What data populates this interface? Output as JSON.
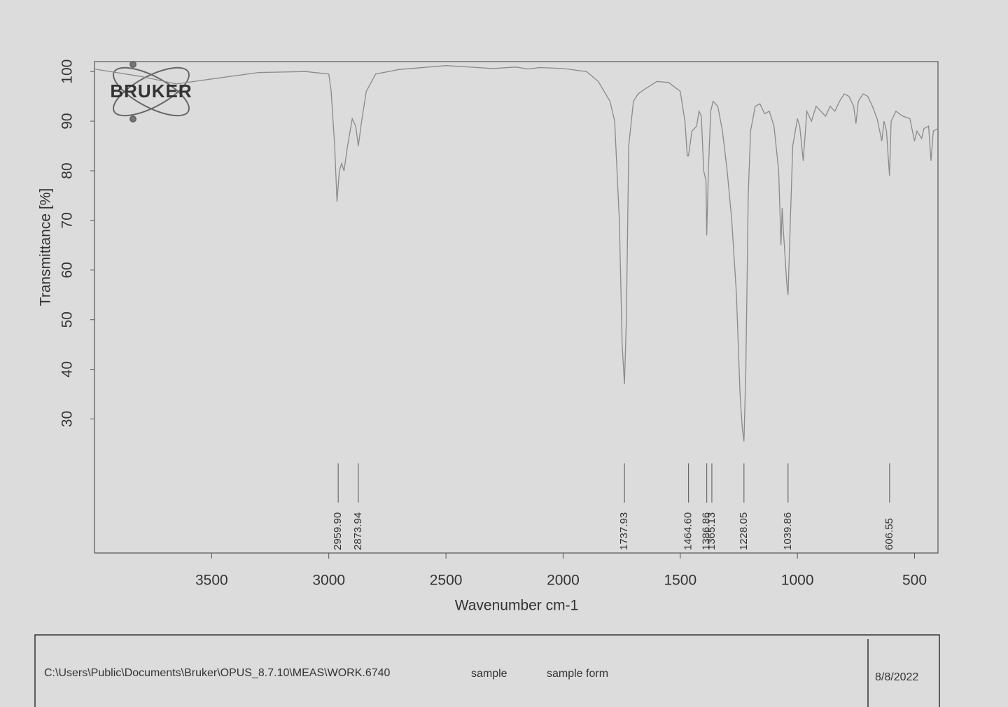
{
  "chart_data": {
    "type": "line",
    "logo": "BRUKER",
    "xlabel": "Wavenumber cm-1",
    "ylabel": "Transmittance [%]",
    "xlim": [
      4000,
      400
    ],
    "ylim": [
      3,
      102
    ],
    "xticks": [
      3500,
      3000,
      2500,
      2000,
      1500,
      1000,
      500
    ],
    "yticks": [
      30,
      40,
      50,
      60,
      70,
      80,
      90,
      100
    ],
    "color": "#8a8a8a",
    "x": [
      4000,
      3800,
      3650,
      3500,
      3300,
      3100,
      3000,
      2990,
      2975,
      2965,
      2955,
      2945,
      2935,
      2920,
      2900,
      2885,
      2874,
      2860,
      2840,
      2800,
      2700,
      2500,
      2300,
      2200,
      2150,
      2100,
      2000,
      1900,
      1850,
      1800,
      1780,
      1760,
      1748,
      1738,
      1730,
      1720,
      1700,
      1680,
      1650,
      1600,
      1550,
      1500,
      1480,
      1470,
      1465,
      1450,
      1430,
      1420,
      1410,
      1400,
      1390,
      1387,
      1380,
      1370,
      1360,
      1340,
      1320,
      1300,
      1280,
      1260,
      1245,
      1235,
      1228,
      1220,
      1210,
      1200,
      1180,
      1160,
      1140,
      1120,
      1100,
      1080,
      1070,
      1065,
      1060,
      1045,
      1040,
      1030,
      1020,
      1000,
      990,
      975,
      960,
      940,
      920,
      900,
      880,
      860,
      840,
      820,
      800,
      780,
      760,
      750,
      740,
      720,
      700,
      680,
      660,
      640,
      630,
      620,
      607,
      600,
      580,
      550,
      520,
      500,
      490,
      470,
      460,
      440,
      430,
      420,
      400
    ],
    "values": [
      100.5,
      99,
      97.5,
      98.5,
      99.8,
      100,
      99.5,
      96,
      85,
      73.8,
      80,
      81.5,
      80,
      85,
      90.5,
      89,
      85,
      90,
      96,
      99.5,
      100.4,
      101.2,
      100.6,
      100.9,
      100.5,
      100.8,
      100.6,
      100,
      98,
      94,
      90,
      70,
      45,
      37,
      50,
      85,
      94,
      95.5,
      96.5,
      98,
      97.8,
      96,
      90,
      83,
      83,
      88,
      89,
      92,
      91,
      80,
      78,
      67,
      80,
      92,
      94,
      93,
      88,
      80,
      70,
      55,
      35,
      28,
      25.5,
      40,
      75,
      88,
      93,
      93.5,
      91.5,
      92,
      89,
      80,
      65,
      72.5,
      68,
      57,
      55,
      70,
      85,
      90.5,
      89,
      82,
      92,
      90,
      93,
      92,
      91,
      93,
      92,
      94,
      95.5,
      95,
      93,
      89.5,
      94,
      95.5,
      95,
      93,
      90.5,
      86,
      90,
      88,
      79,
      90,
      92,
      91,
      90.5,
      86,
      88,
      86.5,
      88.5,
      89,
      82,
      88,
      88.5
    ],
    "peaks": [
      {
        "value": 2959.9,
        "label": "2959.90"
      },
      {
        "value": 2873.94,
        "label": "2873.94"
      },
      {
        "value": 1737.93,
        "label": "1737.93"
      },
      {
        "value": 1464.6,
        "label": "1464.60"
      },
      {
        "value": 1386.86,
        "label": "1386.86"
      },
      {
        "value": 1365.13,
        "label": "1365.13"
      },
      {
        "value": 1228.05,
        "label": "1228.05"
      },
      {
        "value": 1039.86,
        "label": "1039.86"
      },
      {
        "value": 606.55,
        "label": "606.55"
      }
    ]
  },
  "footer": {
    "path": "C:\\Users\\Public\\Documents\\Bruker\\OPUS_8.7.10\\MEAS\\WORK.6740",
    "sample": "sample",
    "form": "sample form",
    "date": "8/8/2022"
  }
}
